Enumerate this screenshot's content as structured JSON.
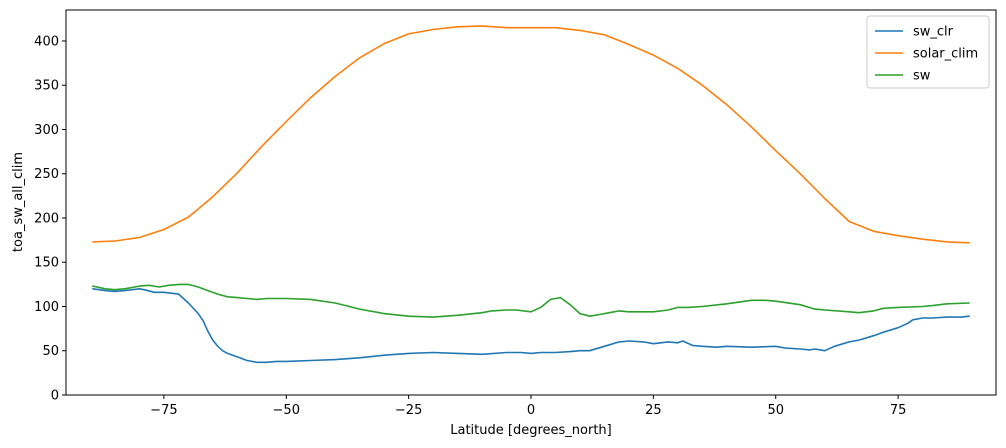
{
  "chart_data": {
    "type": "line",
    "xlabel": "Latitude [degrees_north]",
    "ylabel": "toa_sw_all_clim",
    "xlim": [
      -95,
      95
    ],
    "ylim": [
      0,
      435
    ],
    "xticks": [
      -75,
      -50,
      -25,
      0,
      25,
      50,
      75
    ],
    "xtick_labels": [
      "−75",
      "−50",
      "−25",
      "0",
      "25",
      "50",
      "75"
    ],
    "yticks": [
      0,
      50,
      100,
      150,
      200,
      250,
      300,
      350,
      400
    ],
    "ytick_labels": [
      "0",
      "50",
      "100",
      "150",
      "200",
      "250",
      "300",
      "350",
      "400"
    ],
    "grid": false,
    "legend_position": "top-right",
    "series": [
      {
        "name": "sw_clr",
        "color": "#1f77b4",
        "x": [
          -89.5,
          -87,
          -85,
          -83,
          -80,
          -79,
          -77,
          -75,
          -72,
          -70,
          -68,
          -67,
          -66,
          -65,
          -64,
          -63,
          -62,
          -60,
          -58,
          -56,
          -54,
          -52,
          -50,
          -45,
          -40,
          -35,
          -30,
          -25,
          -20,
          -15,
          -10,
          -5,
          -2,
          0,
          2,
          5,
          8,
          10,
          12,
          15,
          18,
          20,
          23,
          25,
          28,
          30,
          31,
          33,
          35,
          38,
          40,
          45,
          50,
          52,
          55,
          57,
          58,
          60,
          62,
          65,
          67,
          70,
          72,
          75,
          77,
          78,
          80,
          82,
          85,
          88,
          89.5
        ],
        "y": [
          120,
          118,
          117,
          118,
          120,
          119,
          116,
          116,
          114,
          104,
          92,
          84,
          72,
          62,
          55,
          50,
          47,
          43,
          39,
          37,
          37,
          38,
          38,
          39,
          40,
          42,
          45,
          47,
          48,
          47,
          46,
          48,
          48,
          47,
          48,
          48,
          49,
          50,
          50,
          55,
          60,
          61,
          60,
          58,
          60,
          59,
          61,
          56,
          55,
          54,
          55,
          54,
          55,
          53,
          52,
          51,
          52,
          50,
          55,
          60,
          62,
          67,
          71,
          76,
          81,
          85,
          87,
          87,
          88,
          88,
          89
        ]
      },
      {
        "name": "solar_clim",
        "color": "#ff7f0e",
        "x": [
          -89.5,
          -85,
          -80,
          -75,
          -70,
          -65,
          -60,
          -55,
          -50,
          -45,
          -40,
          -35,
          -30,
          -25,
          -20,
          -15,
          -10,
          -5,
          0,
          5,
          10,
          15,
          20,
          25,
          30,
          35,
          40,
          45,
          50,
          55,
          60,
          65,
          70,
          75,
          80,
          85,
          89.5
        ],
        "y": [
          173,
          174,
          178,
          187,
          201,
          224,
          251,
          281,
          309,
          336,
          360,
          381,
          397,
          408,
          413,
          416,
          417,
          415,
          415,
          415,
          412,
          407,
          396,
          384,
          369,
          350,
          328,
          303,
          276,
          250,
          222,
          196,
          185,
          180,
          176,
          173,
          172
        ]
      },
      {
        "name": "sw",
        "color": "#2ca02c",
        "x": [
          -89.5,
          -87,
          -85,
          -83,
          -80,
          -78,
          -76,
          -74,
          -72,
          -70,
          -68,
          -66,
          -64,
          -62,
          -60,
          -58,
          -56,
          -54,
          -52,
          -50,
          -45,
          -40,
          -35,
          -30,
          -25,
          -20,
          -15,
          -10,
          -8,
          -5,
          -3,
          0,
          2,
          4,
          6,
          8,
          10,
          12,
          14,
          16,
          18,
          20,
          25,
          28,
          30,
          32,
          35,
          40,
          45,
          48,
          50,
          55,
          58,
          60,
          65,
          67,
          70,
          72,
          75,
          80,
          82,
          85,
          89.5
        ],
        "y": [
          123,
          120,
          119,
          120,
          123,
          124,
          122,
          124,
          125,
          125,
          122,
          118,
          114,
          111,
          110,
          109,
          108,
          109,
          109,
          109,
          108,
          104,
          97,
          92,
          89,
          88,
          90,
          93,
          95,
          96,
          96,
          94,
          99,
          108,
          110,
          102,
          92,
          89,
          91,
          93,
          95,
          94,
          94,
          96,
          99,
          99,
          100,
          103,
          107,
          107,
          106,
          102,
          97,
          96,
          94,
          93,
          95,
          98,
          99,
          100,
          101,
          103,
          104
        ]
      }
    ]
  }
}
